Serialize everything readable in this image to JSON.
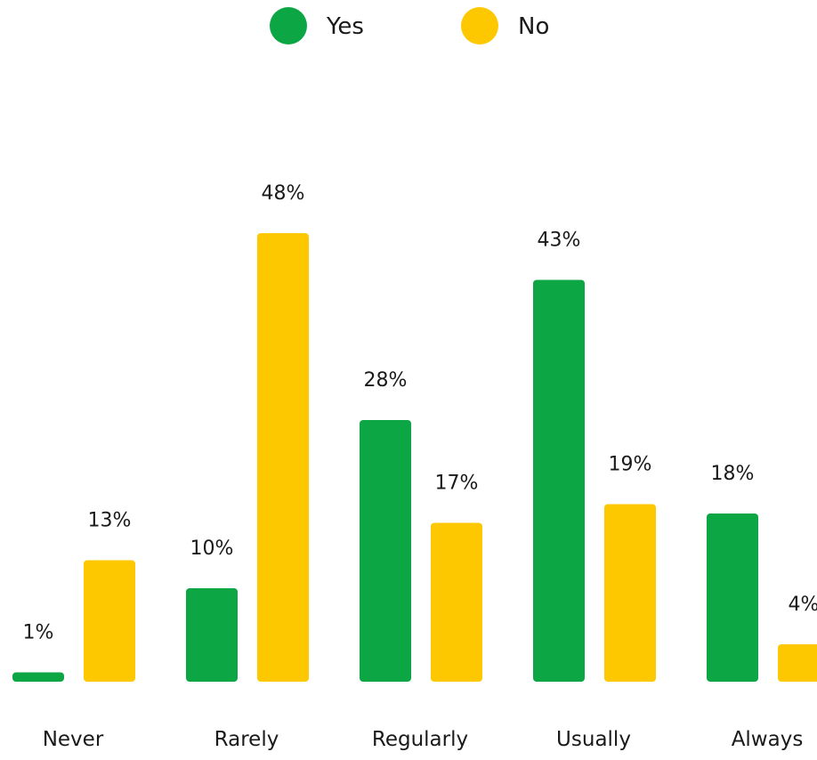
{
  "chart_data": {
    "type": "bar",
    "categories": [
      "Never",
      "Rarely",
      "Regularly",
      "Usually",
      "Always"
    ],
    "series": [
      {
        "name": "Yes",
        "color": "#0ca644",
        "values": [
          1,
          10,
          28,
          43,
          18
        ],
        "labels": [
          "1%",
          "10%",
          "28%",
          "43%",
          "18%"
        ]
      },
      {
        "name": "No",
        "color": "#fdc800",
        "values": [
          13,
          48,
          17,
          19,
          4
        ],
        "labels": [
          "13%",
          "48%",
          "17%",
          "19%",
          "4%"
        ]
      }
    ],
    "unit": "%",
    "title": "",
    "xlabel": "",
    "ylabel": "",
    "ylim": [
      0,
      48
    ],
    "grid": false,
    "legend": "top-center"
  }
}
